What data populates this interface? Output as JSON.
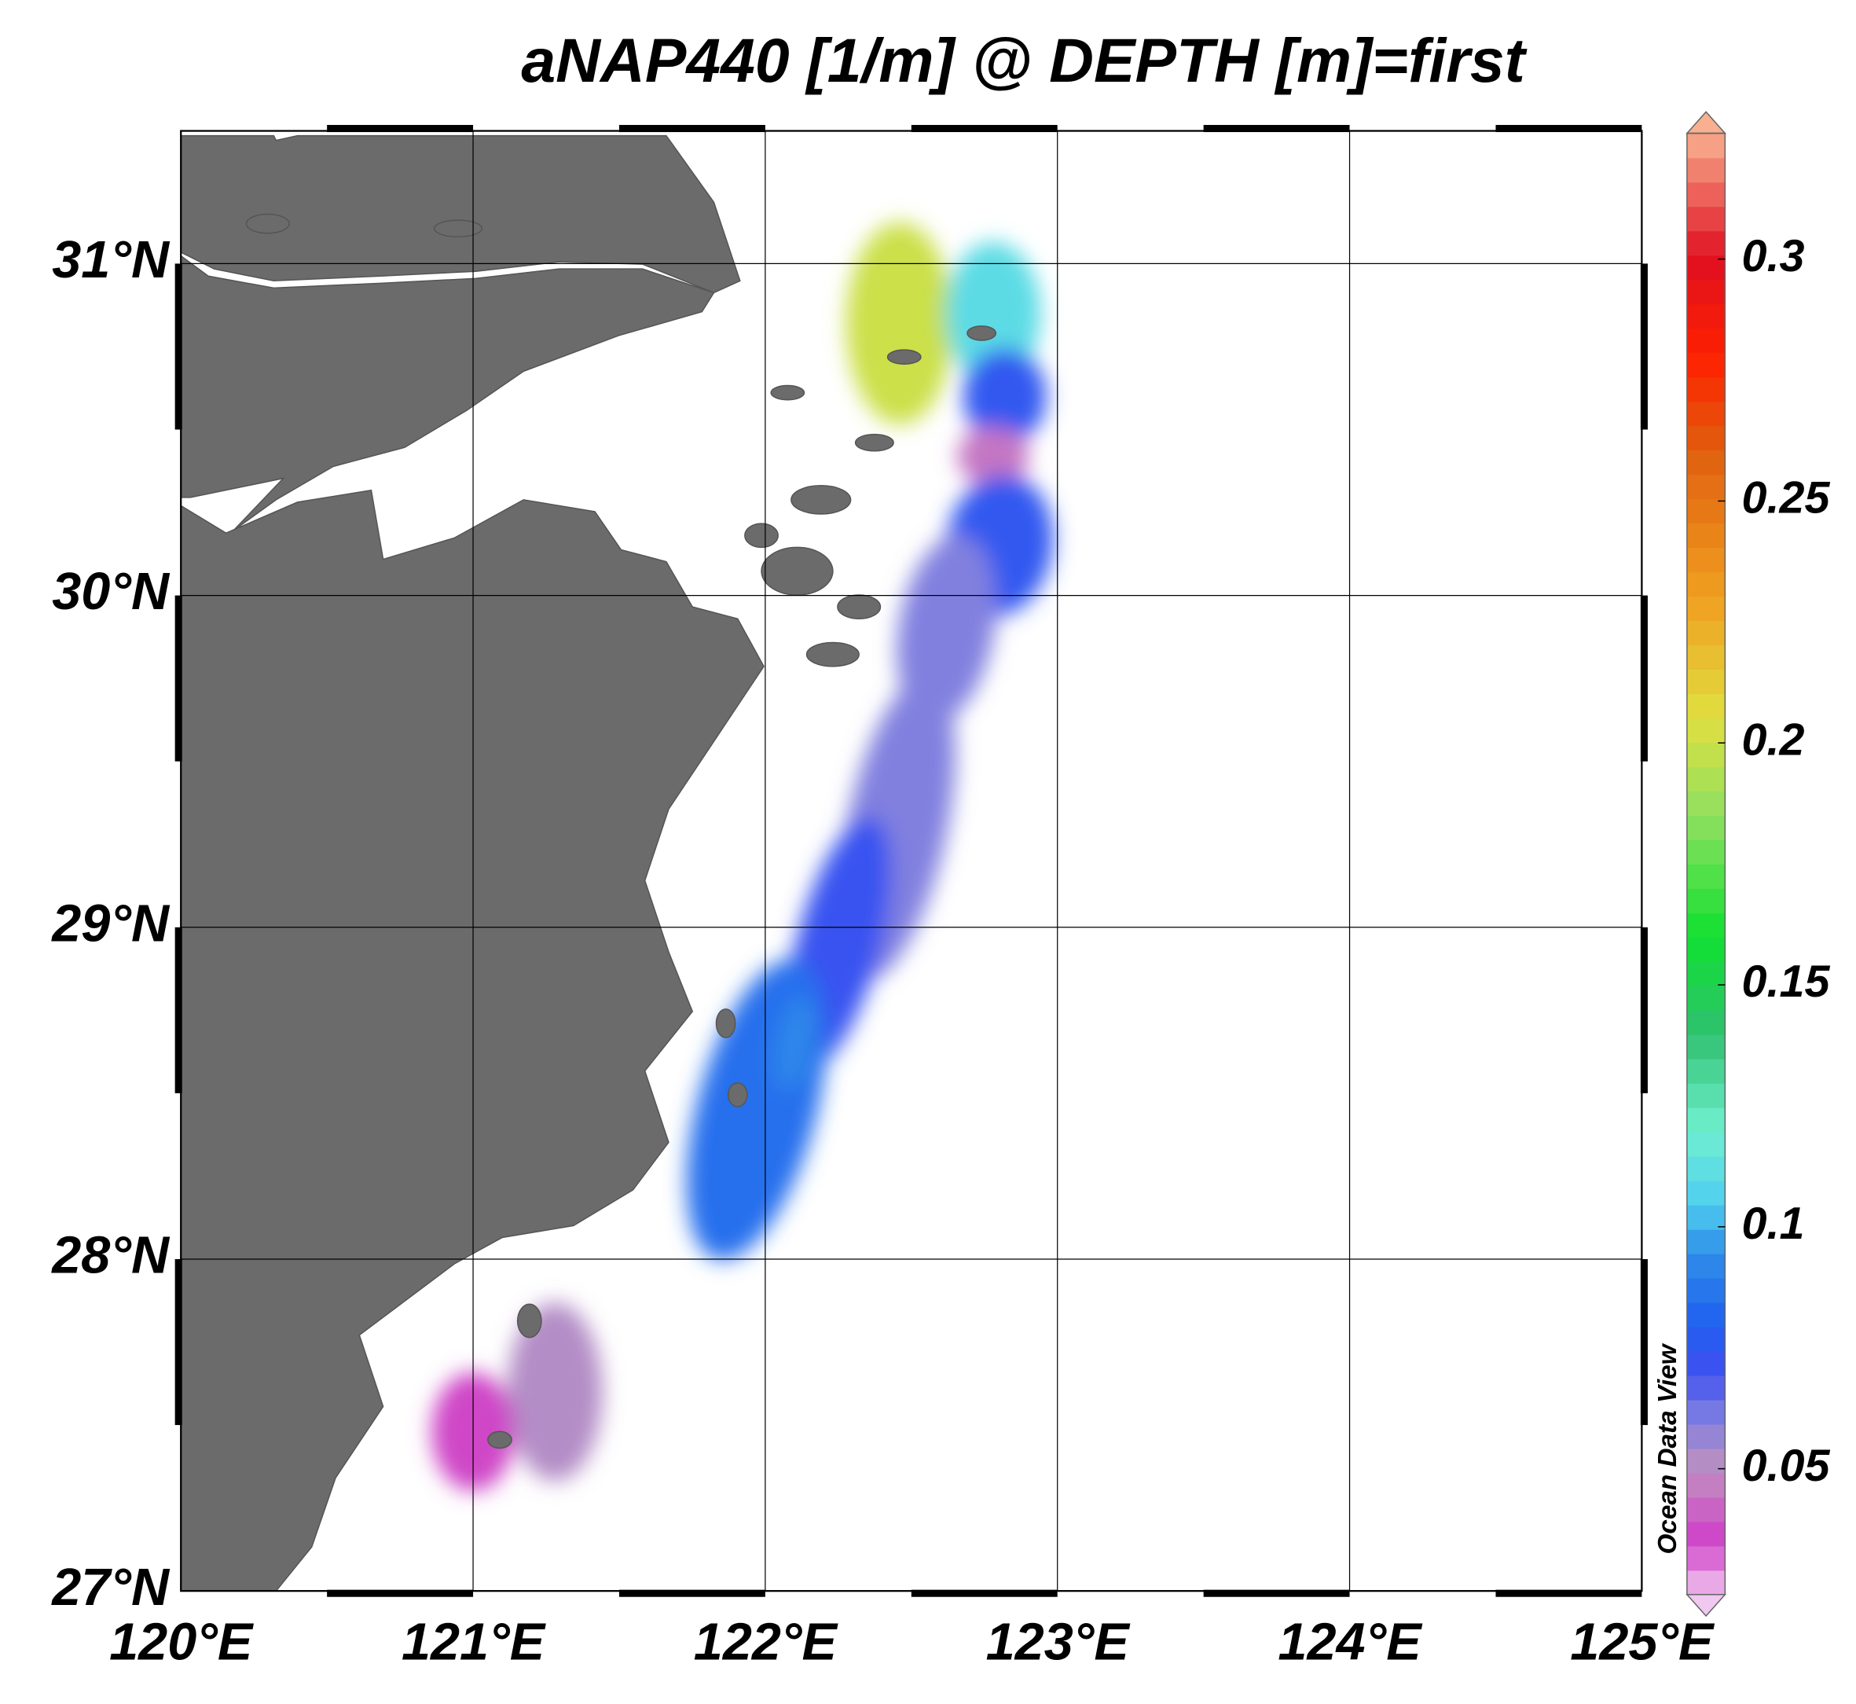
{
  "chart_data": {
    "type": "map",
    "title": "aNAP440 [1/m] @ DEPTH [m]=first",
    "xlim": [
      120,
      125
    ],
    "ylim": [
      27,
      31.4
    ],
    "xticks": [
      {
        "value": 120,
        "label": "120°E"
      },
      {
        "value": 121,
        "label": "121°E"
      },
      {
        "value": 122,
        "label": "122°E"
      },
      {
        "value": 123,
        "label": "123°E"
      },
      {
        "value": 124,
        "label": "124°E"
      },
      {
        "value": 125,
        "label": "125°E"
      }
    ],
    "yticks": [
      {
        "value": 27,
        "label": "27°N"
      },
      {
        "value": 28,
        "label": "28°N"
      },
      {
        "value": 29,
        "label": "29°N"
      },
      {
        "value": 30,
        "label": "30°N"
      },
      {
        "value": 31,
        "label": "31°N"
      }
    ],
    "grid": true,
    "colorbar_lim": [
      0.024,
      0.326
    ],
    "colorbar_ticks": [
      0.05,
      0.1,
      0.15,
      0.2,
      0.25,
      0.3
    ],
    "watermark": "Ocean Data View",
    "field": [
      {
        "lon": 122.46,
        "lat": 30.82,
        "value": 0.2
      },
      {
        "lon": 122.78,
        "lat": 30.85,
        "value": 0.11
      },
      {
        "lon": 122.82,
        "lat": 30.6,
        "value": 0.075
      },
      {
        "lon": 122.78,
        "lat": 30.42,
        "value": 0.045
      },
      {
        "lon": 122.8,
        "lat": 30.15,
        "value": 0.075
      },
      {
        "lon": 122.62,
        "lat": 29.9,
        "value": 0.06
      },
      {
        "lon": 122.45,
        "lat": 29.3,
        "value": 0.06
      },
      {
        "lon": 122.25,
        "lat": 28.95,
        "value": 0.072
      },
      {
        "lon": 121.97,
        "lat": 28.45,
        "value": 0.085
      },
      {
        "lon": 122.1,
        "lat": 28.65,
        "value": 0.092
      },
      {
        "lon": 121.28,
        "lat": 27.6,
        "value": 0.052
      },
      {
        "lon": 121.0,
        "lat": 27.48,
        "value": 0.036
      }
    ]
  }
}
